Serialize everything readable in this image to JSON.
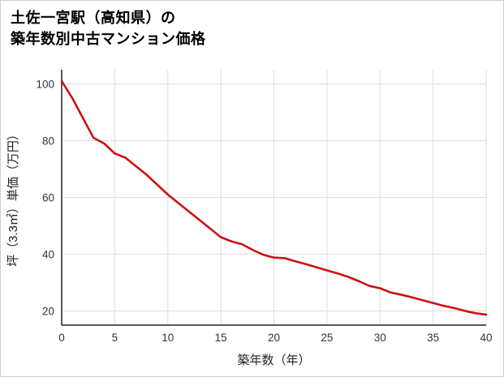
{
  "title": {
    "line1": "土佐一宮駅（高知県）の",
    "line2": "築年数別中古マンション価格"
  },
  "chart_data": {
    "type": "line",
    "title": "土佐一宮駅（高知県）の築年数別中古マンション価格",
    "xlabel": "築年数（年）",
    "ylabel": "坪（3.3㎡）単価（万円）",
    "x": [
      0,
      1,
      2,
      3,
      4,
      5,
      6,
      7,
      8,
      9,
      10,
      11,
      12,
      13,
      14,
      15,
      16,
      17,
      18,
      19,
      20,
      21,
      22,
      23,
      24,
      25,
      26,
      27,
      28,
      29,
      30,
      31,
      32,
      33,
      34,
      35,
      36,
      37,
      38,
      39,
      40
    ],
    "values": [
      101,
      95,
      88,
      81,
      79,
      75.5,
      74,
      71,
      68,
      64.5,
      61,
      58,
      55,
      52,
      49,
      46,
      44.5,
      43.5,
      41.5,
      39.8,
      38.8,
      38.6,
      37.5,
      36.5,
      35.4,
      34.3,
      33.2,
      32,
      30.5,
      28.8,
      28,
      26.5,
      25.7,
      24.8,
      23.8,
      22.8,
      21.8,
      21,
      20,
      19.2,
      18.7
    ],
    "x_ticks": [
      0,
      5,
      10,
      15,
      20,
      25,
      30,
      35,
      40
    ],
    "y_ticks": [
      20,
      40,
      60,
      80,
      100
    ],
    "xlim": [
      0,
      40
    ],
    "ylim": [
      15,
      105
    ],
    "grid": true,
    "legend": false,
    "line_color": "#cc1212",
    "grid_color": "#dddddd",
    "axis_color": "#222222"
  }
}
